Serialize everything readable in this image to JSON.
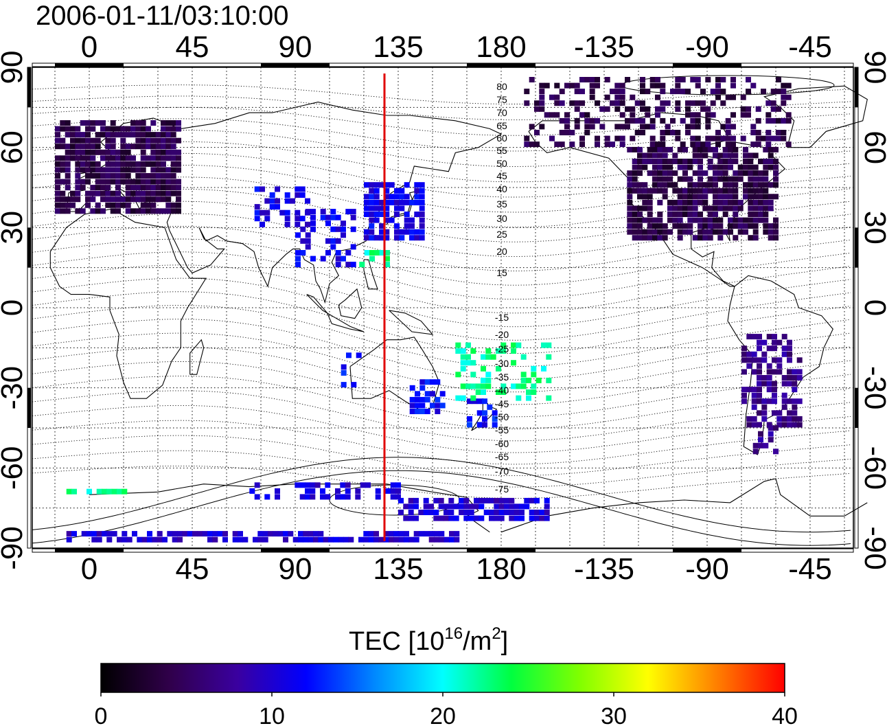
{
  "header": {
    "timestamp": "2006-01-11/03:10:00"
  },
  "map": {
    "top_lon_labels": [
      "0",
      "45",
      "90",
      "135",
      "180",
      "-135",
      "-90",
      "-45"
    ],
    "bottom_lon_labels": [
      "0",
      "45",
      "90",
      "135",
      "180",
      "-135",
      "-90",
      "-45"
    ],
    "left_lat_labels": [
      "90",
      "60",
      "30",
      "0",
      "-30",
      "-60",
      "-90"
    ],
    "right_lat_labels": [
      "90",
      "60",
      "30",
      "0",
      "-30",
      "-60",
      "-90"
    ],
    "top_lon_values": [
      0,
      45,
      90,
      135,
      180,
      -135,
      -90,
      -45
    ],
    "lat_values": [
      90,
      60,
      30,
      0,
      -30,
      -60,
      -90
    ],
    "meridian_longitude": 135,
    "meridian_color": "#e00000",
    "magnetic_latitude_labels": [
      "80",
      "75",
      "70",
      "65",
      "60",
      "55",
      "50",
      "45",
      "40",
      "35",
      "30",
      "25",
      "20",
      "15",
      "-15",
      "-20",
      "-25",
      "-30",
      "-35",
      "-40",
      "-45",
      "-50",
      "-55",
      "-60",
      "-65",
      "-70",
      "-75"
    ]
  },
  "colorbar": {
    "title_prefix": "TEC  [10",
    "title_sup1": "16",
    "title_mid": "/m",
    "title_sup2": "2",
    "title_suffix": "]",
    "tick_labels": [
      "0",
      "10",
      "20",
      "30",
      "40"
    ],
    "range": [
      0,
      40
    ],
    "stops": [
      "#000000",
      "#30004a",
      "#3a00a0",
      "#0000ff",
      "#0088ff",
      "#00ffff",
      "#00ff40",
      "#80ff00",
      "#ffff00",
      "#ff8000",
      "#ff0000"
    ]
  },
  "tec_regions": [
    {
      "name": "europe",
      "level": 4
    },
    {
      "name": "north-america",
      "level": 4
    },
    {
      "name": "east-asia",
      "level": 11
    },
    {
      "name": "south-america",
      "level": 7
    },
    {
      "name": "australia",
      "level": 12
    },
    {
      "name": "antarctica",
      "level": 10
    },
    {
      "name": "pacific",
      "level": 22
    }
  ]
}
